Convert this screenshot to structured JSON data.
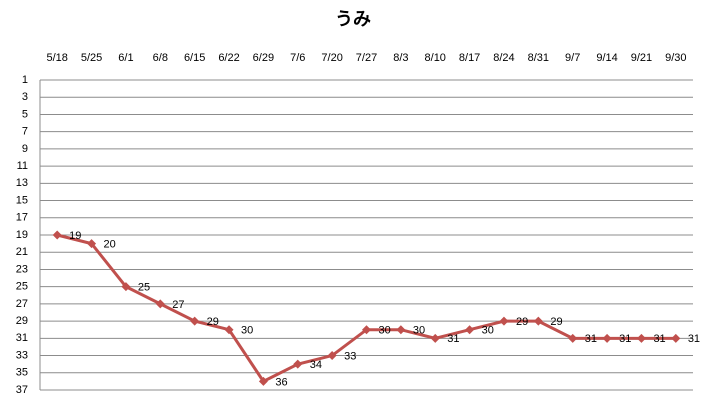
{
  "chart_data": {
    "type": "line",
    "title": "うみ",
    "categories": [
      "5/18",
      "5/25",
      "6/1",
      "6/8",
      "6/15",
      "6/22",
      "6/29",
      "7/6",
      "7/20",
      "7/27",
      "8/3",
      "8/10",
      "8/17",
      "8/24",
      "8/31",
      "9/7",
      "9/14",
      "9/21",
      "9/30"
    ],
    "series": [
      {
        "name": "うみ",
        "color": "#c0504d",
        "values": [
          19,
          20,
          25,
          27,
          29,
          30,
          36,
          34,
          33,
          30,
          30,
          31,
          30,
          29,
          29,
          31,
          31,
          31,
          31
        ]
      }
    ],
    "ylim": [
      1,
      37
    ],
    "yticks": [
      1,
      3,
      5,
      7,
      9,
      11,
      13,
      15,
      17,
      19,
      21,
      23,
      25,
      27,
      29,
      31,
      33,
      35,
      37
    ],
    "y_reversed": true,
    "x_axis_position": "top",
    "grid": true
  }
}
